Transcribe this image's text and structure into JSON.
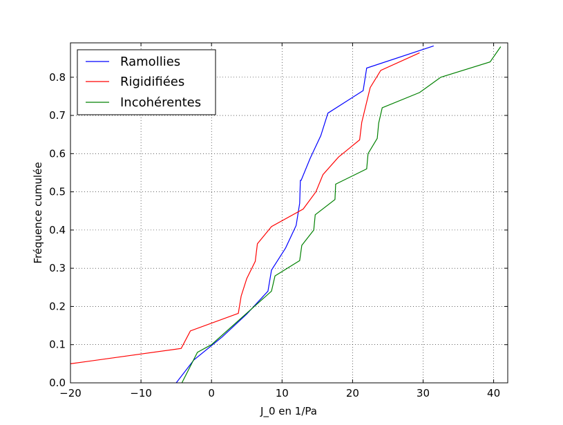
{
  "chart_data": {
    "type": "line",
    "title": "",
    "xlabel": "J_0 en 1/Pa",
    "ylabel": "Fréquence cumulée",
    "xlim": [
      -20,
      42
    ],
    "ylim": [
      0.0,
      0.89
    ],
    "xticks": [
      -20,
      -10,
      0,
      10,
      20,
      30,
      40
    ],
    "xtick_labels": [
      "−20",
      "−10",
      "0",
      "10",
      "20",
      "30",
      "40"
    ],
    "yticks": [
      0.0,
      0.1,
      0.2,
      0.3,
      0.4,
      0.5,
      0.6,
      0.7,
      0.8
    ],
    "ytick_labels": [
      "0.0",
      "0.1",
      "0.2",
      "0.3",
      "0.4",
      "0.5",
      "0.6",
      "0.7",
      "0.8"
    ],
    "grid": true,
    "legend_position": "top-left",
    "series": [
      {
        "name": "Ramollies",
        "color": "#0000ff",
        "x": [
          -5.0,
          -2.5,
          1.5,
          5.0,
          8.0,
          8.5,
          10.5,
          12.0,
          12.5,
          12.6,
          12.7,
          14.0,
          15.5,
          16.5,
          21.5,
          22.0,
          31.5
        ],
        "y": [
          0.0,
          0.06,
          0.12,
          0.18,
          0.24,
          0.295,
          0.353,
          0.412,
          0.47,
          0.53,
          0.53,
          0.588,
          0.647,
          0.706,
          0.765,
          0.824,
          0.882
        ]
      },
      {
        "name": "Rigidifiées",
        "color": "#ff0000",
        "x": [
          -20.0,
          -4.3,
          -3.0,
          3.8,
          4.2,
          5.0,
          6.2,
          6.5,
          8.5,
          13.0,
          14.8,
          15.8,
          18.0,
          21.0,
          21.3,
          22.5,
          24.0,
          29.5
        ],
        "y": [
          0.05,
          0.09,
          0.136,
          0.182,
          0.227,
          0.273,
          0.318,
          0.364,
          0.409,
          0.455,
          0.5,
          0.545,
          0.591,
          0.636,
          0.682,
          0.773,
          0.818,
          0.864
        ]
      },
      {
        "name": "Incohérentes",
        "color": "#008000",
        "x": [
          -4.2,
          -2.0,
          0.0,
          8.5,
          9.0,
          12.5,
          12.8,
          14.5,
          14.7,
          17.5,
          17.6,
          22.0,
          22.2,
          23.5,
          23.7,
          24.2,
          29.5,
          32.5,
          39.5,
          41.0
        ],
        "y": [
          0.0,
          0.08,
          0.1,
          0.24,
          0.28,
          0.32,
          0.36,
          0.4,
          0.44,
          0.48,
          0.52,
          0.56,
          0.6,
          0.64,
          0.68,
          0.72,
          0.76,
          0.8,
          0.84,
          0.88
        ]
      }
    ]
  }
}
